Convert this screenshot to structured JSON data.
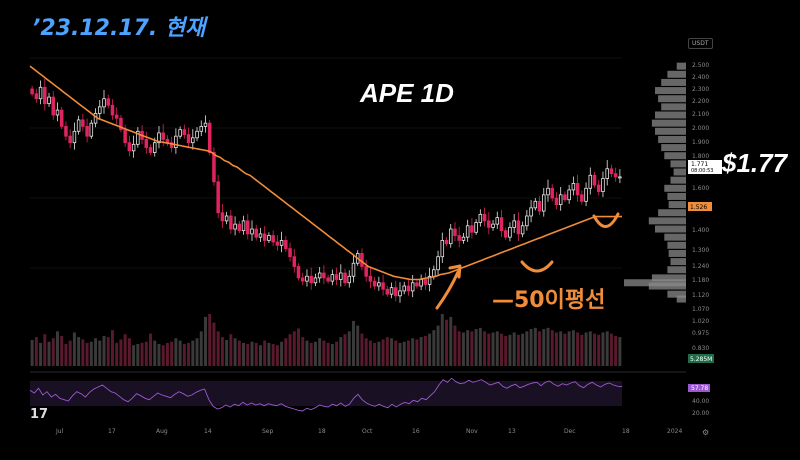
{
  "annotations": {
    "date_title": "’23.12.17. 현재",
    "chart_title": "APE 1D",
    "price_callout": "$1.77",
    "ma_label": "—50이평선",
    "currency_badge": "USDT",
    "platform_logo": "17"
  },
  "colors": {
    "up": "#e8e8e8",
    "down": "#e0245e",
    "ma": "#f08c3a",
    "rsi": "#9b59d0",
    "profile": "#8a8a8a",
    "arrow": "#f08c3a",
    "date_title": "#4da3ff"
  },
  "chart_data": {
    "type": "candlestick",
    "symbol": "APE",
    "interval": "1D",
    "x_axis": {
      "tick_labels": [
        "Jul",
        "17",
        "Aug",
        "14",
        "Sep",
        "18",
        "Oct",
        "16",
        "Nov",
        "13",
        "Dec",
        "18",
        "2024"
      ]
    },
    "y_axis": {
      "ticks": [
        "2.500",
        "2.400",
        "2.300",
        "2.200",
        "2.100",
        "2.000",
        "1.900",
        "1.800",
        "1.700",
        "1.600",
        "1.500",
        "1.400",
        "1.300",
        "1.240",
        "1.180",
        "1.120",
        "1.070",
        "1.020",
        "0.975",
        "0.830"
      ],
      "range": [
        0.83,
        2.5
      ]
    },
    "price_labels": {
      "last_price": "1.771",
      "countdown": "08:00:53",
      "ma_value": "1.526",
      "volume": "5.285M"
    },
    "candles_close": [
      2.28,
      2.25,
      2.32,
      2.22,
      2.26,
      2.15,
      2.18,
      2.08,
      2.02,
      1.98,
      2.05,
      2.12,
      2.08,
      2.02,
      2.1,
      2.16,
      2.2,
      2.25,
      2.21,
      2.15,
      2.13,
      2.06,
      1.98,
      1.93,
      1.97,
      2.05,
      2.0,
      1.95,
      1.92,
      1.98,
      2.04,
      2.0,
      1.98,
      1.95,
      2.02,
      2.06,
      2.03,
      1.98,
      2.01,
      2.05,
      2.08,
      2.1,
      1.92,
      1.74,
      1.55,
      1.5,
      1.53,
      1.45,
      1.48,
      1.44,
      1.5,
      1.42,
      1.45,
      1.4,
      1.42,
      1.38,
      1.41,
      1.37,
      1.35,
      1.38,
      1.33,
      1.28,
      1.22,
      1.15,
      1.13,
      1.16,
      1.12,
      1.15,
      1.18,
      1.15,
      1.13,
      1.17,
      1.14,
      1.18,
      1.12,
      1.16,
      1.24,
      1.3,
      1.22,
      1.16,
      1.13,
      1.1,
      1.12,
      1.08,
      1.05,
      1.09,
      1.04,
      1.07,
      1.1,
      1.07,
      1.12,
      1.1,
      1.14,
      1.11,
      1.16,
      1.2,
      1.28,
      1.38,
      1.36,
      1.45,
      1.41,
      1.38,
      1.4,
      1.47,
      1.43,
      1.49,
      1.54,
      1.5,
      1.46,
      1.48,
      1.52,
      1.44,
      1.4,
      1.46,
      1.5,
      1.42,
      1.47,
      1.53,
      1.58,
      1.62,
      1.56,
      1.66,
      1.7,
      1.64,
      1.6,
      1.66,
      1.63,
      1.69,
      1.73,
      1.66,
      1.62,
      1.7,
      1.78,
      1.72,
      1.68,
      1.76,
      1.82,
      1.79,
      1.77,
      1.77
    ],
    "ma50": [
      2.45,
      2.43,
      2.41,
      2.39,
      2.37,
      2.35,
      2.33,
      2.31,
      2.29,
      2.27,
      2.25,
      2.23,
      2.21,
      2.19,
      2.17,
      2.15,
      2.13,
      2.12,
      2.11,
      2.1,
      2.09,
      2.08,
      2.07,
      2.06,
      2.05,
      2.04,
      2.03,
      2.02,
      2.01,
      2.0,
      1.99,
      1.985,
      1.98,
      1.975,
      1.97,
      1.965,
      1.96,
      1.955,
      1.95,
      1.945,
      1.94,
      1.935,
      1.93,
      1.92,
      1.9,
      1.89,
      1.87,
      1.86,
      1.84,
      1.83,
      1.81,
      1.79,
      1.78,
      1.76,
      1.74,
      1.72,
      1.7,
      1.68,
      1.66,
      1.64,
      1.62,
      1.6,
      1.58,
      1.56,
      1.54,
      1.52,
      1.5,
      1.48,
      1.46,
      1.44,
      1.42,
      1.4,
      1.38,
      1.36,
      1.34,
      1.32,
      1.3,
      1.28,
      1.26,
      1.24,
      1.22,
      1.21,
      1.2,
      1.19,
      1.18,
      1.17,
      1.16,
      1.155,
      1.15,
      1.145,
      1.14,
      1.14,
      1.14,
      1.145,
      1.15,
      1.155,
      1.16,
      1.17,
      1.175,
      1.18,
      1.19,
      1.2,
      1.21,
      1.22,
      1.23,
      1.24,
      1.25,
      1.26,
      1.27,
      1.28,
      1.29,
      1.3,
      1.31,
      1.32,
      1.33,
      1.34,
      1.35,
      1.36,
      1.37,
      1.38,
      1.39,
      1.4,
      1.41,
      1.42,
      1.43,
      1.44,
      1.45,
      1.46,
      1.47,
      1.48,
      1.49,
      1.5,
      1.51,
      1.52,
      1.526,
      1.526,
      1.526,
      1.526,
      1.526,
      1.526,
      1.526
    ],
    "rsi": {
      "current": "57.78",
      "ticks": [
        "60.00",
        "40.00",
        "20.00"
      ],
      "values": [
        52,
        48,
        55,
        45,
        50,
        42,
        46,
        40,
        38,
        36,
        44,
        50,
        47,
        42,
        49,
        54,
        57,
        60,
        55,
        50,
        48,
        43,
        38,
        35,
        40,
        47,
        44,
        40,
        38,
        43,
        48,
        45,
        43,
        41,
        46,
        50,
        47,
        43,
        45,
        49,
        52,
        54,
        38,
        28,
        24,
        26,
        30,
        27,
        31,
        29,
        34,
        30,
        33,
        30,
        32,
        29,
        32,
        30,
        29,
        32,
        28,
        26,
        24,
        22,
        21,
        25,
        23,
        26,
        30,
        28,
        27,
        31,
        29,
        33,
        28,
        31,
        40,
        46,
        38,
        33,
        30,
        28,
        31,
        28,
        26,
        31,
        27,
        31,
        34,
        32,
        37,
        35,
        40,
        38,
        44,
        50,
        60,
        68,
        64,
        70,
        65,
        62,
        63,
        67,
        64,
        66,
        68,
        64,
        60,
        62,
        64,
        58,
        55,
        59,
        61,
        56,
        58,
        61,
        63,
        64,
        59,
        64,
        66,
        61,
        58,
        62,
        60,
        63,
        65,
        59,
        56,
        61,
        64,
        60,
        57,
        61,
        63,
        60,
        58,
        57.78
      ]
    },
    "volume": {
      "values": [
        45,
        50,
        40,
        55,
        42,
        48,
        60,
        52,
        38,
        44,
        58,
        50,
        46,
        40,
        42,
        48,
        44,
        52,
        50,
        62,
        40,
        46,
        55,
        48,
        36,
        38,
        40,
        42,
        56,
        44,
        38,
        36,
        40,
        42,
        48,
        44,
        38,
        40,
        44,
        48,
        60,
        85,
        90,
        75,
        60,
        50,
        45,
        55,
        48,
        44,
        40,
        38,
        42,
        40,
        36,
        44,
        40,
        38,
        36,
        42,
        48,
        55,
        60,
        65,
        50,
        44,
        40,
        42,
        48,
        44,
        40,
        38,
        42,
        50,
        55,
        60,
        78,
        70,
        56,
        48,
        44,
        40,
        42,
        46,
        50,
        48,
        44,
        40,
        42,
        44,
        48,
        46,
        50,
        52,
        56,
        62,
        70,
        90,
        80,
        85,
        70,
        60,
        58,
        62,
        60,
        64,
        66,
        60,
        56,
        58,
        60,
        56,
        52,
        54,
        58,
        54,
        56,
        60,
        64,
        66,
        60,
        64,
        66,
        62,
        58,
        60,
        56,
        60,
        62,
        58,
        54,
        58,
        60,
        56,
        54,
        58,
        60,
        56,
        52,
        50
      ]
    },
    "volume_profile": {
      "levels": [
        2.45,
        2.4,
        2.35,
        2.3,
        2.25,
        2.2,
        2.15,
        2.1,
        2.05,
        2.0,
        1.95,
        1.9,
        1.85,
        1.8,
        1.75,
        1.7,
        1.65,
        1.6,
        1.55,
        1.5,
        1.45,
        1.4,
        1.35,
        1.3,
        1.25,
        1.2,
        1.15,
        1.12,
        1.1,
        1.05,
        1.02
      ],
      "widths": [
        0.15,
        0.3,
        0.4,
        0.5,
        0.45,
        0.4,
        0.5,
        0.55,
        0.5,
        0.45,
        0.4,
        0.35,
        0.25,
        0.2,
        0.25,
        0.35,
        0.3,
        0.28,
        0.45,
        0.6,
        0.5,
        0.35,
        0.3,
        0.28,
        0.25,
        0.3,
        0.55,
        1.0,
        0.6,
        0.3,
        0.15
      ]
    }
  }
}
